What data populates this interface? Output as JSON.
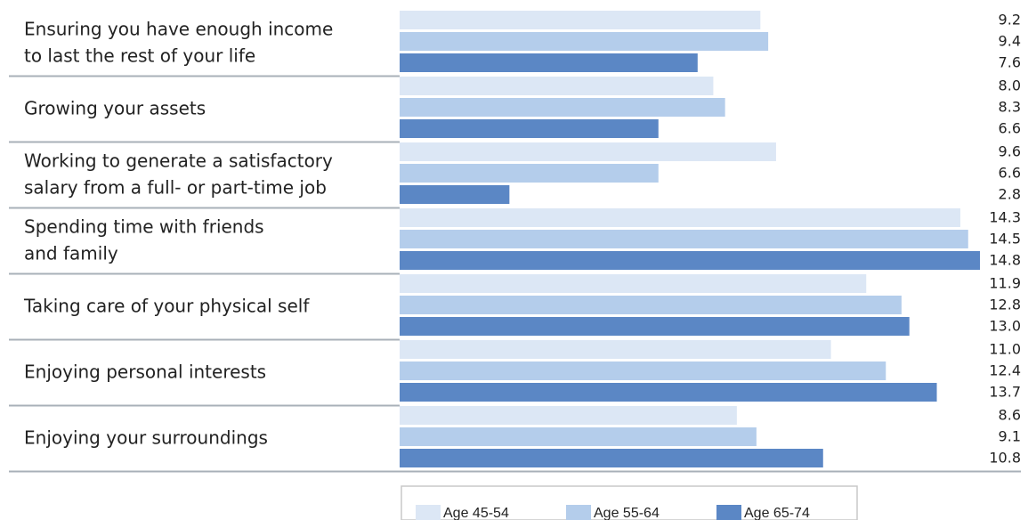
{
  "chart_data": {
    "type": "bar",
    "orientation": "horizontal",
    "categories": [
      [
        "Ensuring you have enough income",
        "to last the rest of your life"
      ],
      [
        "Growing your assets"
      ],
      [
        "Working to generate a satisfactory",
        "salary from a full- or part-time job"
      ],
      [
        "Spending time with friends",
        "and family"
      ],
      [
        "Taking care of your physical self"
      ],
      [
        "Enjoying personal interests"
      ],
      [
        "Enjoying your surroundings"
      ]
    ],
    "series": [
      {
        "name": "Age 45-54",
        "color": "#dce7f5",
        "values": [
          9.2,
          8.0,
          9.6,
          14.3,
          11.9,
          11.0,
          8.6
        ],
        "labels": [
          "9.2",
          "8.0",
          "9.6",
          "14.3",
          "11.9",
          "11.0",
          "8.6"
        ]
      },
      {
        "name": "Age 55-64",
        "color": "#b4cdeb",
        "values": [
          9.4,
          8.3,
          6.6,
          14.5,
          12.8,
          12.4,
          9.1
        ],
        "labels": [
          "9.4",
          "8.3",
          "6.6",
          "14.5",
          "12.8",
          "12.4",
          "9.1"
        ]
      },
      {
        "name": "Age 65-74",
        "color": "#5b87c5",
        "values": [
          7.6,
          6.6,
          2.8,
          14.8,
          13.0,
          13.7,
          10.8
        ],
        "labels": [
          "7.6",
          "6.6",
          "2.8",
          "14.8",
          "13.0",
          "13.7",
          "10.8"
        ]
      }
    ],
    "xlim": [
      0,
      14.8
    ],
    "grid": false,
    "legend": "bottom"
  }
}
